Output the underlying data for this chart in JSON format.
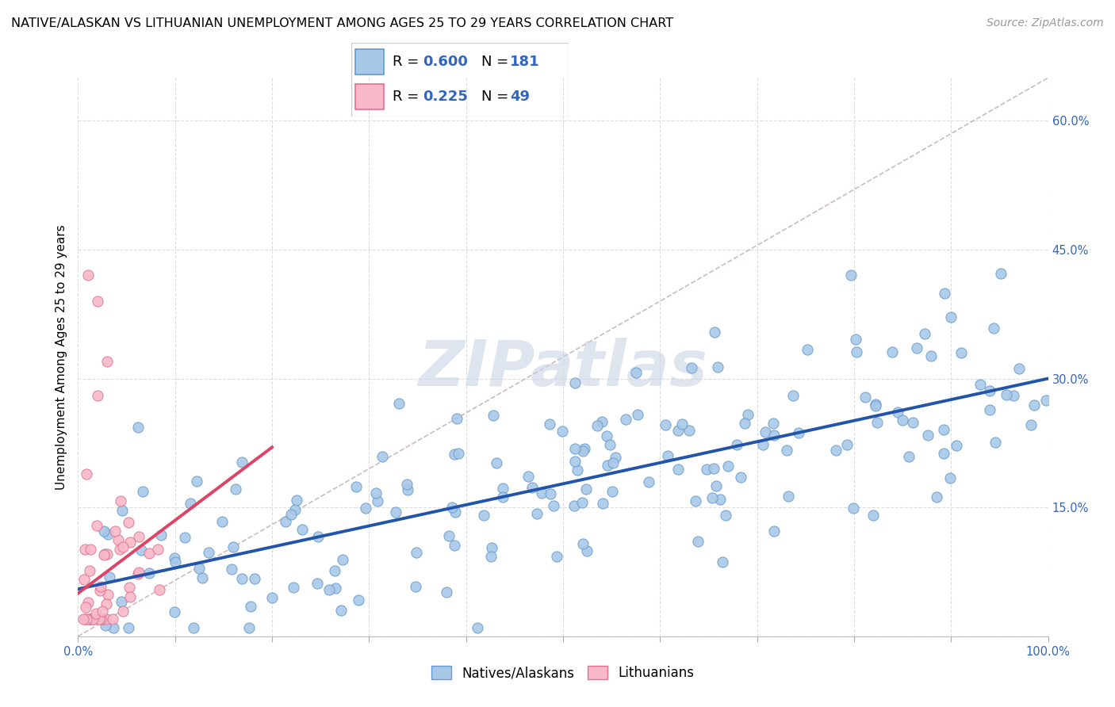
{
  "title": "NATIVE/ALASKAN VS LITHUANIAN UNEMPLOYMENT AMONG AGES 25 TO 29 YEARS CORRELATION CHART",
  "source": "Source: ZipAtlas.com",
  "ylabel": "Unemployment Among Ages 25 to 29 years",
  "xlim": [
    0.0,
    1.0
  ],
  "ylim": [
    0.0,
    0.65
  ],
  "xticks": [
    0.0,
    0.1,
    0.2,
    0.3,
    0.4,
    0.5,
    0.6,
    0.7,
    0.8,
    0.9,
    1.0
  ],
  "yticks_right": [
    0.0,
    0.15,
    0.3,
    0.45,
    0.6
  ],
  "ytick_right_labels": [
    "",
    "15.0%",
    "30.0%",
    "45.0%",
    "60.0%"
  ],
  "blue_color": "#A8C8E8",
  "blue_edge_color": "#6699CC",
  "pink_color": "#F8B8C8",
  "pink_edge_color": "#E07090",
  "blue_line_color": "#2255AA",
  "pink_line_color": "#DD4466",
  "dashed_line_color": "#CCBBBB",
  "legend_blue_R": "0.600",
  "legend_blue_N": "181",
  "legend_pink_R": "0.225",
  "legend_pink_N": "49",
  "grid_color": "#DDDDDD",
  "watermark": "ZIPatlas",
  "watermark_color": "#C8D4E4",
  "blue_regression_x0": 0.0,
  "blue_regression_x1": 1.0,
  "blue_regression_y0": 0.055,
  "blue_regression_y1": 0.3,
  "pink_regression_x0": 0.0,
  "pink_regression_x1": 0.2,
  "pink_regression_y0": 0.05,
  "pink_regression_y1": 0.22,
  "title_fontsize": 11.5,
  "source_fontsize": 10,
  "axis_label_fontsize": 11,
  "tick_fontsize": 10.5,
  "legend_fontsize": 13
}
